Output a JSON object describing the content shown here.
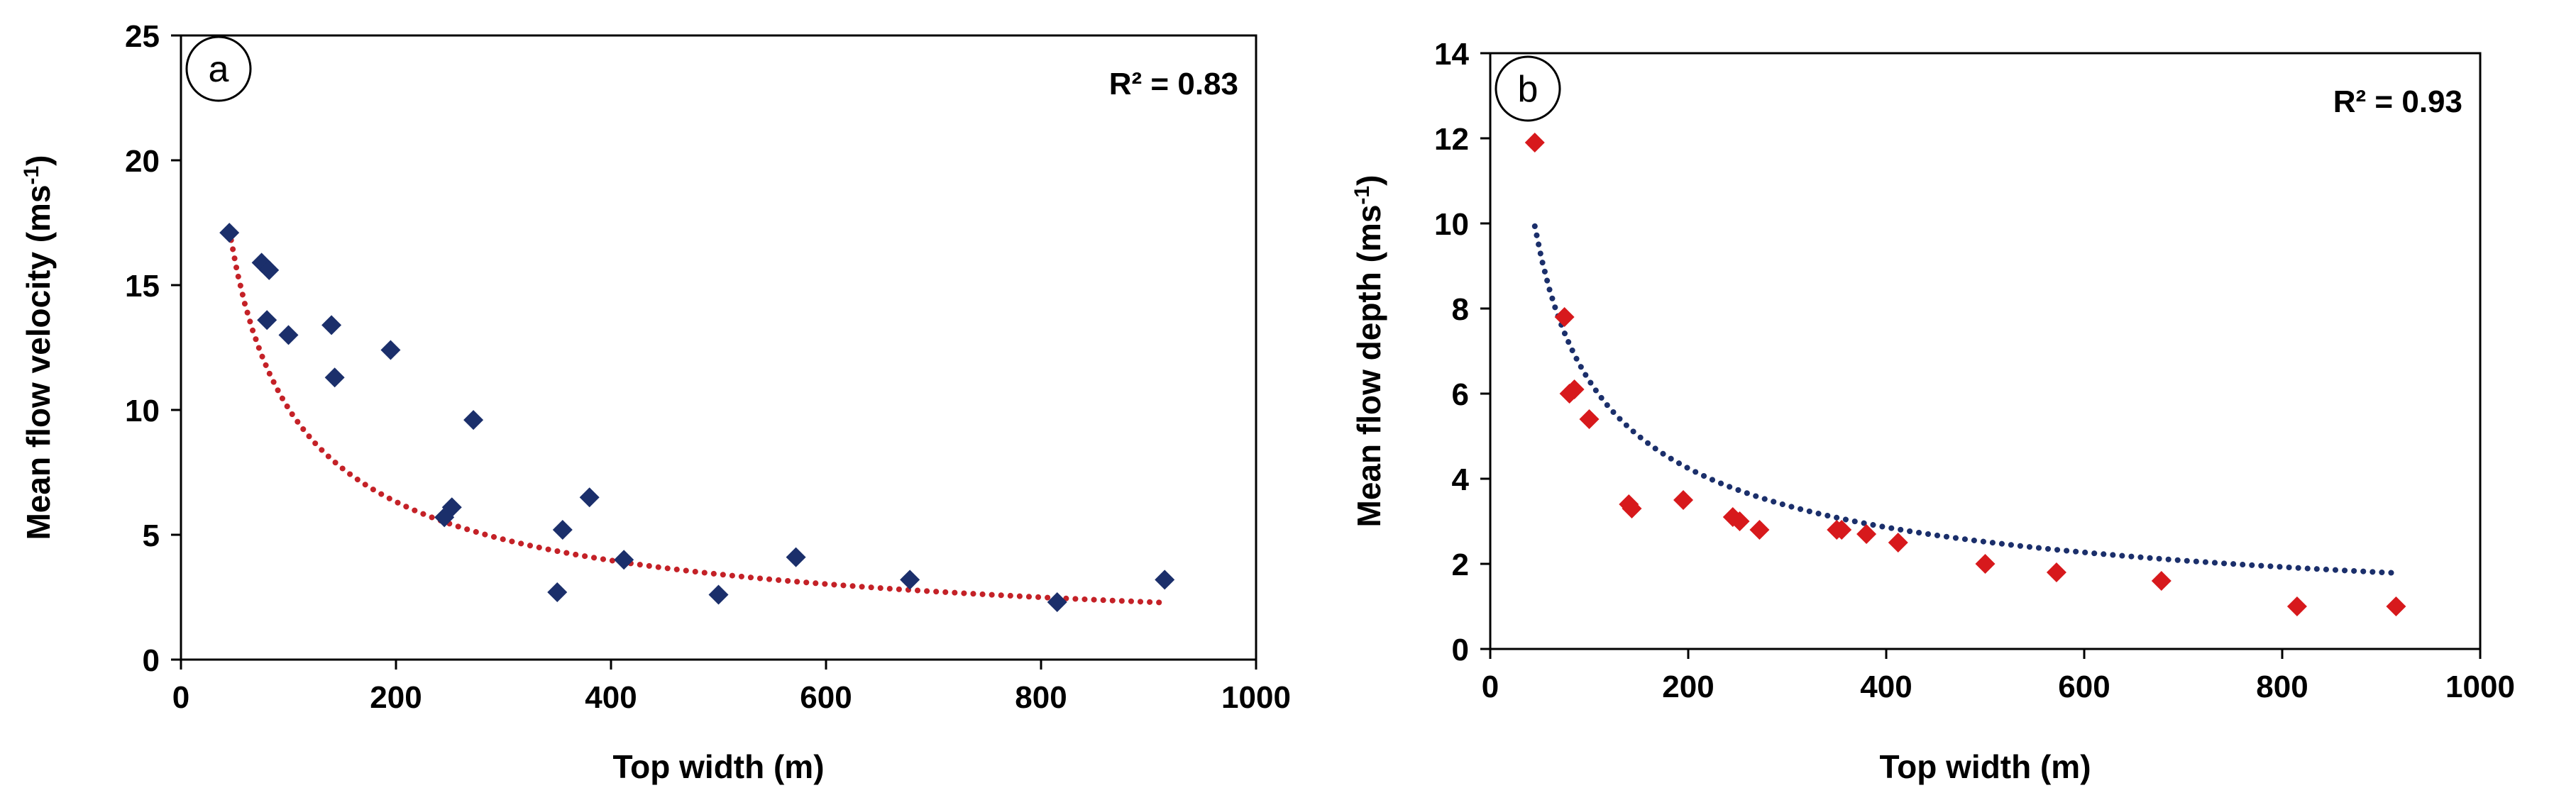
{
  "chart_data": [
    {
      "type": "scatter",
      "panel_label": "a",
      "xlabel": "Top width (m)",
      "ylabel": "Mean flow velocity (ms",
      "ylabel_sup": "-1",
      "ylabel_close": ")",
      "xlim": [
        0,
        1000
      ],
      "ylim": [
        0,
        25
      ],
      "xticks": [
        0,
        200,
        400,
        600,
        800,
        1000
      ],
      "yticks": [
        0,
        5,
        10,
        15,
        20,
        25
      ],
      "annotation": "R² = 0.83",
      "marker_color": "#1b2f6b",
      "trend_color": "#c42127",
      "trendline": {
        "type": "power",
        "a": 220,
        "b": -0.67,
        "x_range": [
          45,
          915
        ]
      },
      "points": [
        {
          "x": 45,
          "y": 17.1
        },
        {
          "x": 75,
          "y": 15.9
        },
        {
          "x": 82,
          "y": 15.6
        },
        {
          "x": 80,
          "y": 13.6
        },
        {
          "x": 100,
          "y": 13.0
        },
        {
          "x": 140,
          "y": 13.4
        },
        {
          "x": 143,
          "y": 11.3
        },
        {
          "x": 195,
          "y": 12.4
        },
        {
          "x": 245,
          "y": 5.7
        },
        {
          "x": 252,
          "y": 6.1
        },
        {
          "x": 272,
          "y": 9.6
        },
        {
          "x": 350,
          "y": 2.7
        },
        {
          "x": 355,
          "y": 5.2
        },
        {
          "x": 380,
          "y": 6.5
        },
        {
          "x": 412,
          "y": 4.0
        },
        {
          "x": 500,
          "y": 2.6
        },
        {
          "x": 572,
          "y": 4.1
        },
        {
          "x": 678,
          "y": 3.2
        },
        {
          "x": 815,
          "y": 2.3
        },
        {
          "x": 915,
          "y": 3.2
        }
      ]
    },
    {
      "type": "scatter",
      "panel_label": "b",
      "xlabel": "Top width (m)",
      "ylabel": "Mean flow depth (ms",
      "ylabel_sup": "-1",
      "ylabel_close": ")",
      "xlim": [
        0,
        1000
      ],
      "ylim": [
        0,
        14
      ],
      "xticks": [
        0,
        200,
        400,
        600,
        800,
        1000
      ],
      "yticks": [
        0,
        2,
        4,
        6,
        8,
        10,
        12,
        14
      ],
      "annotation": "R² = 0.93",
      "marker_color": "#d7191c",
      "trend_color": "#1b2f6b",
      "trendline": {
        "type": "power",
        "a": 87,
        "b": -0.57,
        "x_range": [
          45,
          915
        ]
      },
      "points": [
        {
          "x": 45,
          "y": 11.9
        },
        {
          "x": 75,
          "y": 7.8
        },
        {
          "x": 80,
          "y": 6.0
        },
        {
          "x": 85,
          "y": 6.1
        },
        {
          "x": 100,
          "y": 5.4
        },
        {
          "x": 140,
          "y": 3.4
        },
        {
          "x": 143,
          "y": 3.3
        },
        {
          "x": 195,
          "y": 3.5
        },
        {
          "x": 245,
          "y": 3.1
        },
        {
          "x": 252,
          "y": 3.0
        },
        {
          "x": 272,
          "y": 2.8
        },
        {
          "x": 350,
          "y": 2.8
        },
        {
          "x": 355,
          "y": 2.8
        },
        {
          "x": 380,
          "y": 2.7
        },
        {
          "x": 412,
          "y": 2.5
        },
        {
          "x": 500,
          "y": 2.0
        },
        {
          "x": 572,
          "y": 1.8
        },
        {
          "x": 678,
          "y": 1.6
        },
        {
          "x": 815,
          "y": 1.0
        },
        {
          "x": 915,
          "y": 1.0
        }
      ]
    }
  ]
}
